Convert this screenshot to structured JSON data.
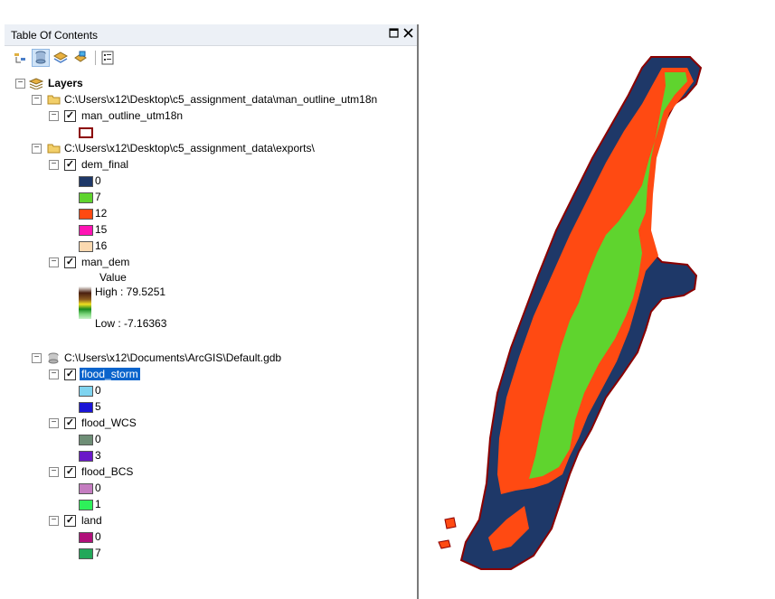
{
  "toc": {
    "title": "Table Of Contents",
    "root_label": "Layers",
    "groups": [
      {
        "path": "C:\\Users\\x12\\Desktop\\c5_assignment_data\\man_outline_utm18n",
        "layers": [
          {
            "name": "man_outline_utm18n",
            "checked": true,
            "outline_color": "#8b0000"
          }
        ]
      },
      {
        "path": "C:\\Users\\x12\\Desktop\\c5_assignment_data\\exports\\",
        "layers": [
          {
            "name": "dem_final",
            "checked": true,
            "classes": [
              {
                "label": "0",
                "color": "#1e3868"
              },
              {
                "label": "7",
                "color": "#5fd42e"
              },
              {
                "label": "12",
                "color": "#ff4a12"
              },
              {
                "label": "15",
                "color": "#ff14b4"
              },
              {
                "label": "16",
                "color": "#fbd9b0"
              }
            ]
          },
          {
            "name": "man_dem",
            "checked": true,
            "value_label": "Value",
            "high_label": "High : 79.5251",
            "low_label": "Low : -7.16363"
          }
        ]
      },
      {
        "path": "C:\\Users\\x12\\Documents\\ArcGIS\\Default.gdb",
        "layers": [
          {
            "name": "flood_storm",
            "checked": true,
            "selected": true,
            "classes": [
              {
                "label": "0",
                "color": "#7fd4f0"
              },
              {
                "label": "5",
                "color": "#1a14d6"
              }
            ]
          },
          {
            "name": "flood_WCS",
            "checked": true,
            "classes": [
              {
                "label": "0",
                "color": "#6e8e76"
              },
              {
                "label": "3",
                "color": "#6a18c8"
              }
            ]
          },
          {
            "name": "flood_BCS",
            "checked": true,
            "classes": [
              {
                "label": "0",
                "color": "#c47cc0"
              },
              {
                "label": "1",
                "color": "#2ef05a"
              }
            ]
          },
          {
            "name": "land",
            "checked": true,
            "classes": [
              {
                "label": "0",
                "color": "#b0107a"
              },
              {
                "label": "7",
                "color": "#22a85a"
              }
            ]
          }
        ]
      }
    ]
  },
  "icons": {
    "close": "close-icon",
    "maximize": "maximize-icon",
    "tools": [
      "list-by-drawing-order-icon",
      "list-by-source-icon",
      "list-by-visibility-icon",
      "list-by-selection-icon",
      "options-icon"
    ]
  },
  "map_colors": {
    "water": "#1e3868",
    "land_green": "#5fd42e",
    "land_orange": "#ff4a12",
    "outline": "#8b0000"
  }
}
